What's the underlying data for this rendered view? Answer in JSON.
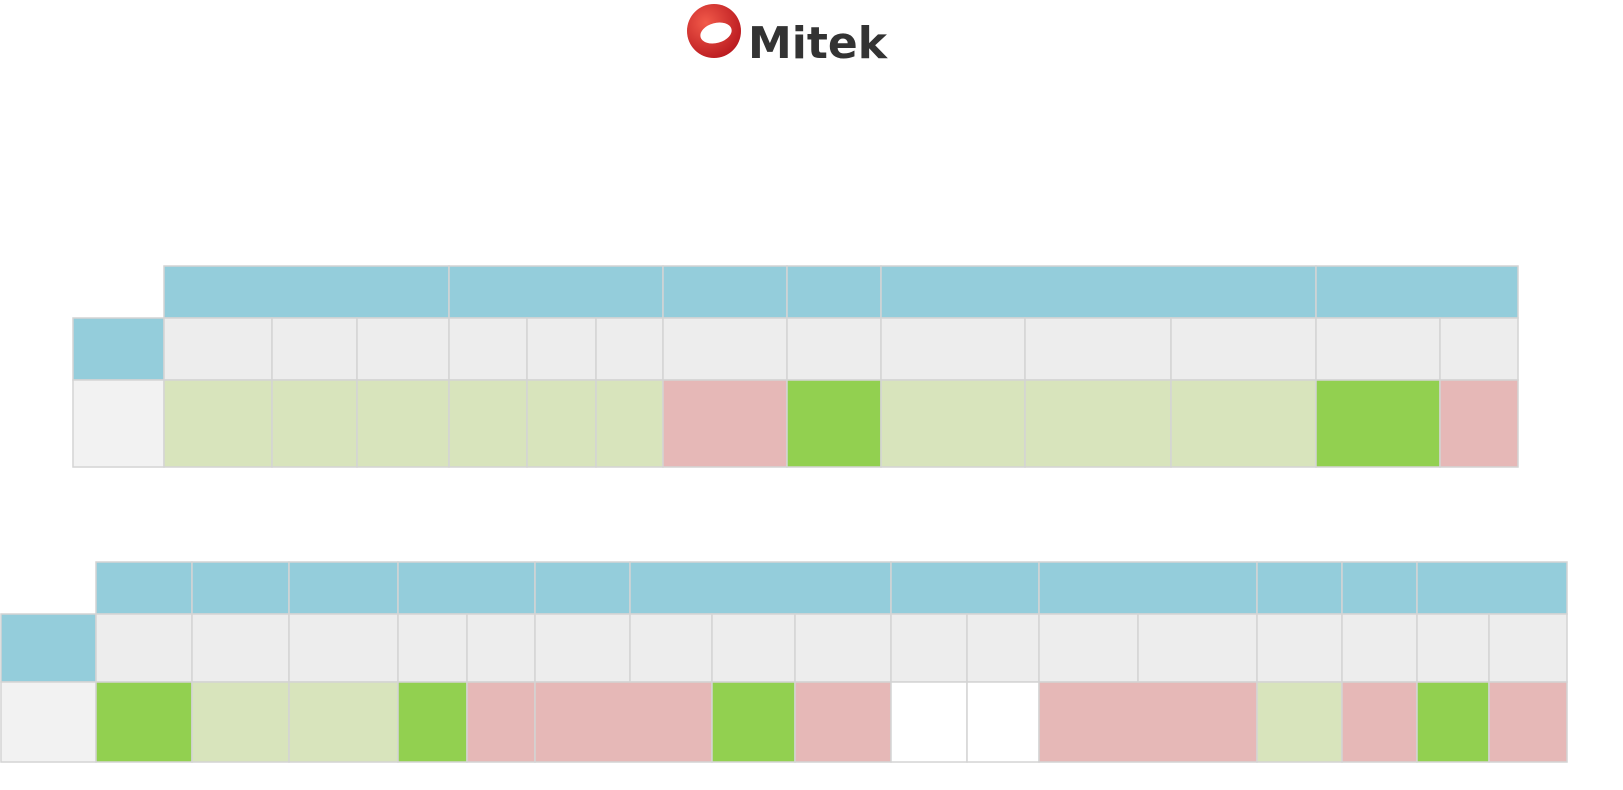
{
  "logo": {
    "text": "Mitek"
  }
}
